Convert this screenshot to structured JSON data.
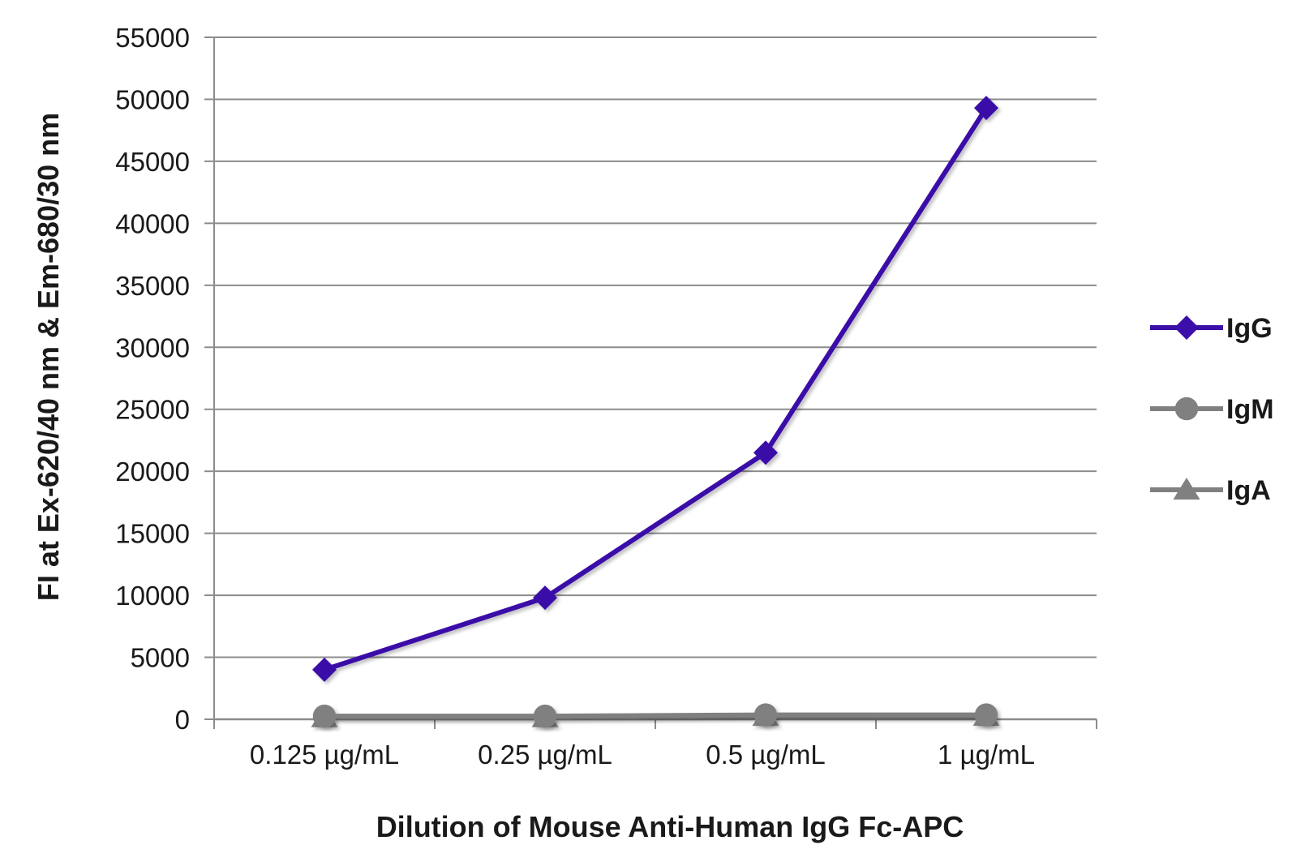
{
  "chart_data": {
    "type": "line",
    "categories": [
      "0.125 µg/mL",
      "0.25 µg/mL",
      "0.5 µg/mL",
      "1 µg/mL"
    ],
    "series": [
      {
        "name": "IgG",
        "values": [
          4000,
          9800,
          21500,
          49300
        ],
        "color": "#3b0fa8",
        "marker": "diamond"
      },
      {
        "name": "IgM",
        "values": [
          250,
          250,
          350,
          350
        ],
        "color": "#808080",
        "marker": "circle"
      },
      {
        "name": "IgA",
        "values": [
          150,
          150,
          250,
          250
        ],
        "color": "#808080",
        "marker": "triangle"
      }
    ],
    "xlabel": "Dilution of Mouse Anti-Human IgG Fc-APC",
    "ylabel": "FI at Ex-620/40 nm & Em-680/30 nm",
    "ylim": [
      0,
      55000
    ],
    "yticks": [
      "0",
      "5000",
      "10000",
      "15000",
      "20000",
      "25000",
      "30000",
      "35000",
      "40000",
      "45000",
      "50000",
      "55000"
    ],
    "grid": true,
    "legend_position": "right"
  }
}
